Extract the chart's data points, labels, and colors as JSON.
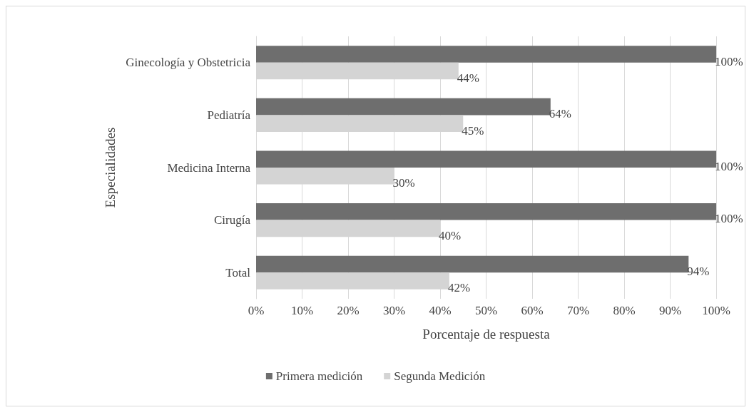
{
  "chart_data": {
    "type": "bar",
    "orientation": "horizontal",
    "xlabel": "Porcentaje de respuesta",
    "ylabel": "Especialidades",
    "categories": [
      "Ginecología y Obstetricia",
      "Pediatría",
      "Medicina Interna",
      "Cirugía",
      "Total"
    ],
    "series": [
      {
        "name": "Primera medición",
        "color": "#6e6e6e",
        "values": [
          100,
          64,
          100,
          100,
          94
        ],
        "value_labels": [
          "100%",
          "64%",
          "100%",
          "100%",
          "94%"
        ]
      },
      {
        "name": "Segunda Medición",
        "color": "#d4d4d4",
        "values": [
          44,
          45,
          30,
          40,
          42
        ],
        "value_labels": [
          "44%",
          "45%",
          "30%",
          "40%",
          "42%"
        ]
      }
    ],
    "xlim": [
      0,
      100
    ],
    "xticks": [
      {
        "value": 0,
        "label": "0%"
      },
      {
        "value": 10,
        "label": "10%"
      },
      {
        "value": 20,
        "label": "20%"
      },
      {
        "value": 30,
        "label": "30%"
      },
      {
        "value": 40,
        "label": "40%"
      },
      {
        "value": 50,
        "label": "50%"
      },
      {
        "value": 60,
        "label": "60%"
      },
      {
        "value": 70,
        "label": "70%"
      },
      {
        "value": 80,
        "label": "80%"
      },
      {
        "value": 90,
        "label": "90%"
      },
      {
        "value": 100,
        "label": "100%"
      }
    ],
    "grid": "x",
    "legend": "bottom"
  }
}
